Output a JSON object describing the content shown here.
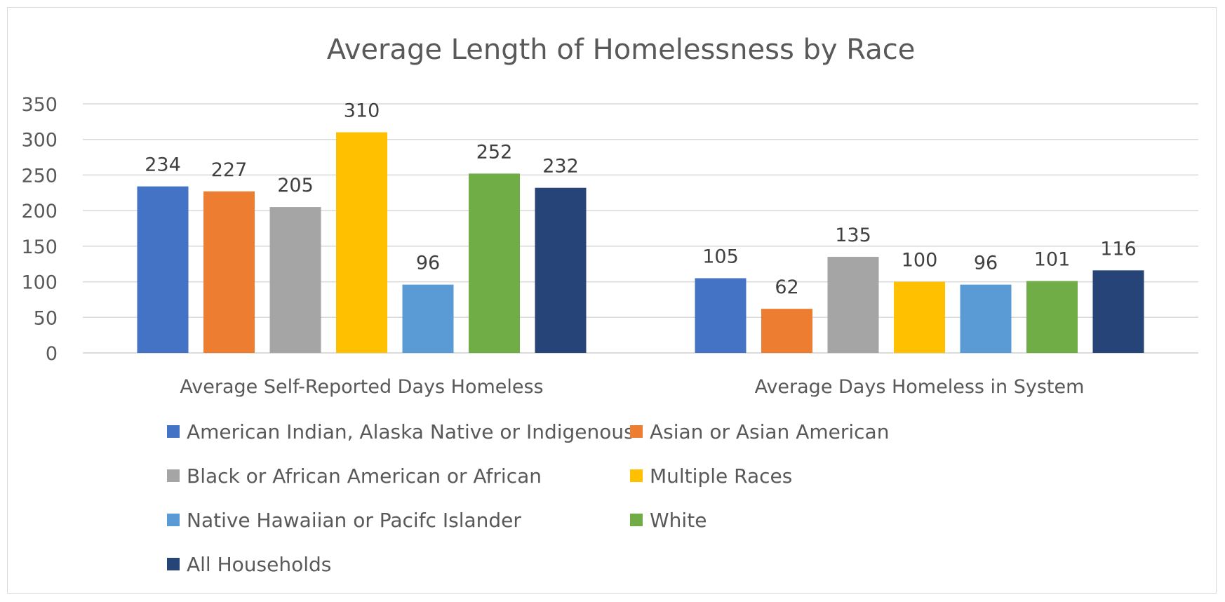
{
  "chart_data": {
    "type": "bar",
    "title": "Average Length of Homelessness by Race",
    "categories": [
      "Average Self-Reported Days Homeless",
      "Average Days Homeless in System"
    ],
    "series": [
      {
        "name": "American Indian, Alaska Native or Indigenous",
        "color": "#4472C4",
        "values": [
          234,
          105
        ]
      },
      {
        "name": "Asian or Asian American",
        "color": "#ED7D31",
        "values": [
          227,
          62
        ]
      },
      {
        "name": "Black or African American or African",
        "color": "#A5A5A5",
        "values": [
          205,
          135
        ]
      },
      {
        "name": "Multiple Races",
        "color": "#FFC000",
        "values": [
          310,
          100
        ]
      },
      {
        "name": "Native Hawaiian or Pacifc Islander",
        "color": "#5B9BD5",
        "values": [
          96,
          96
        ]
      },
      {
        "name": "White",
        "color": "#70AD47",
        "values": [
          252,
          101
        ]
      },
      {
        "name": "All Households",
        "color": "#264478",
        "values": [
          232,
          116
        ]
      }
    ],
    "ylim": [
      0,
      350
    ],
    "yticks": [
      0,
      50,
      100,
      150,
      200,
      250,
      300,
      350
    ],
    "xlabel": "",
    "ylabel": "",
    "grid": true,
    "data_labels": true,
    "legend_position": "bottom"
  }
}
